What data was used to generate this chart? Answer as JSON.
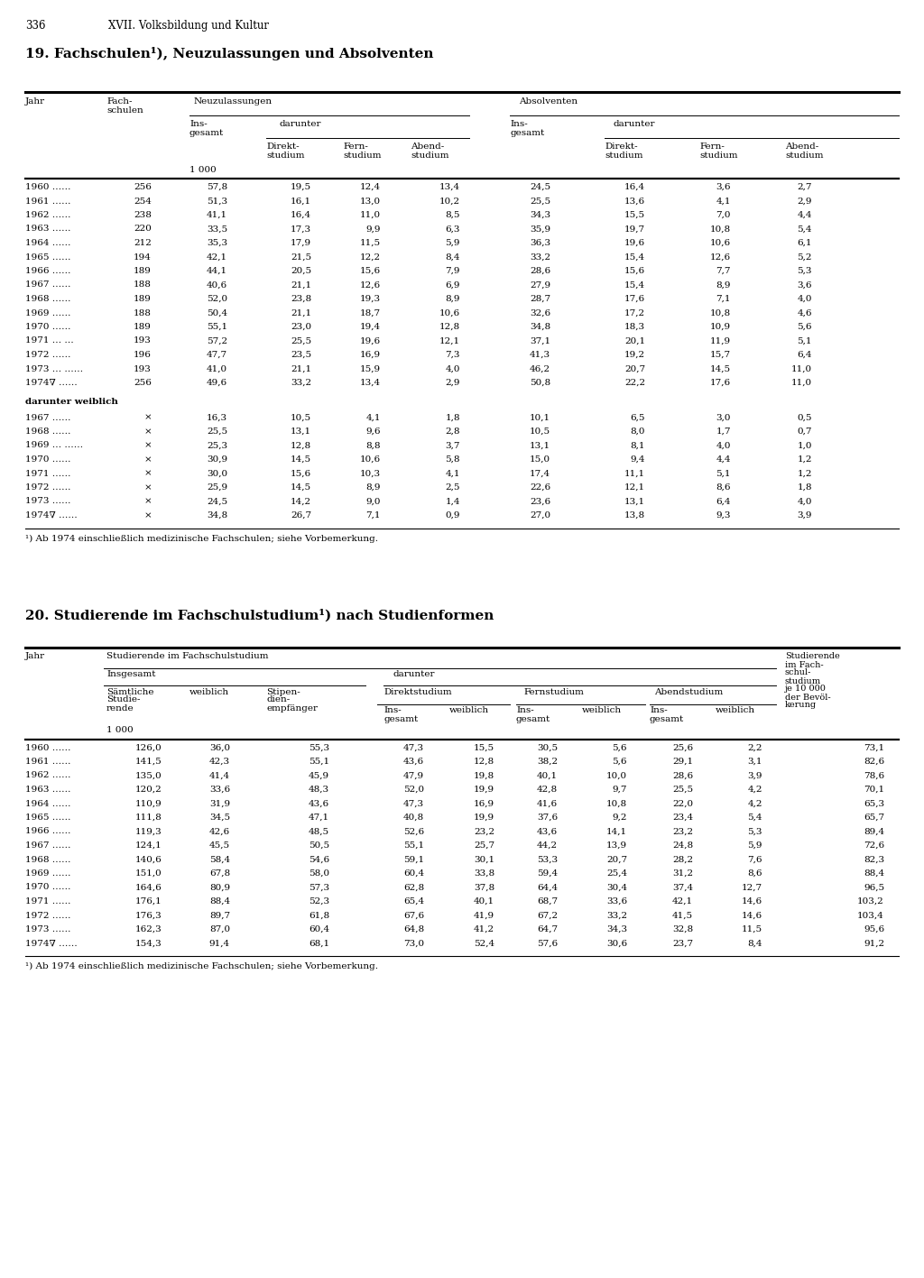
{
  "page_number": "336",
  "page_header": "XVII. Volksbildung und Kultur",
  "table1_title": "19. Fachschulen¹), Neuzulassungen und Absolventen",
  "table1_footnote": "¹) Ab 1974 einschließlich medizinische Fachschulen; siehe Vorbemerkung.",
  "table1_main_data": [
    [
      "1960 ……",
      "256",
      "57,8",
      "19,5",
      "12,4",
      "13,4",
      "24,5",
      "16,4",
      "3,6",
      "2,7"
    ],
    [
      "1961 ……",
      "254",
      "51,3",
      "16,1",
      "13,0",
      "10,2",
      "25,5",
      "13,6",
      "4,1",
      "2,9"
    ],
    [
      "1962 ……",
      "238",
      "41,1",
      "16,4",
      "11,0",
      "8,5",
      "34,3",
      "15,5",
      "7,0",
      "4,4"
    ],
    [
      "1963 ……",
      "220",
      "33,5",
      "17,3",
      "9,9",
      "6,3",
      "35,9",
      "19,7",
      "10,8",
      "5,4"
    ],
    [
      "1964 ……",
      "212",
      "35,3",
      "17,9",
      "11,5",
      "5,9",
      "36,3",
      "19,6",
      "10,6",
      "6,1"
    ],
    [
      "1965 ……",
      "194",
      "42,1",
      "21,5",
      "12,2",
      "8,4",
      "33,2",
      "15,4",
      "12,6",
      "5,2"
    ],
    [
      "1966 ……",
      "189",
      "44,1",
      "20,5",
      "15,6",
      "7,9",
      "28,6",
      "15,6",
      "7,7",
      "5,3"
    ],
    [
      "1967 ……",
      "188",
      "40,6",
      "21,1",
      "12,6",
      "6,9",
      "27,9",
      "15,4",
      "8,9",
      "3,6"
    ],
    [
      "1968 ……",
      "189",
      "52,0",
      "23,8",
      "19,3",
      "8,9",
      "28,7",
      "17,6",
      "7,1",
      "4,0"
    ],
    [
      "1969 ……",
      "188",
      "50,4",
      "21,1",
      "18,7",
      "10,6",
      "32,6",
      "17,2",
      "10,8",
      "4,6"
    ],
    [
      "1970 ……",
      "189",
      "55,1",
      "23,0",
      "19,4",
      "12,8",
      "34,8",
      "18,3",
      "10,9",
      "5,6"
    ],
    [
      "1971 … …",
      "193",
      "57,2",
      "25,5",
      "19,6",
      "12,1",
      "37,1",
      "20,1",
      "11,9",
      "5,1"
    ],
    [
      "1972 ……",
      "196",
      "47,7",
      "23,5",
      "16,9",
      "7,3",
      "41,3",
      "19,2",
      "15,7",
      "6,4"
    ],
    [
      "1973 … ……",
      "193",
      "41,0",
      "21,1",
      "15,9",
      "4,0",
      "46,2",
      "20,7",
      "14,5",
      "11,0"
    ],
    [
      "1974∇ ……",
      "256",
      "49,6",
      "33,2",
      "13,4",
      "2,9",
      "50,8",
      "22,2",
      "17,6",
      "11,0"
    ]
  ],
  "table1_sub_header": "darunter weiblich",
  "table1_sub_data": [
    [
      "1967 ……",
      "×",
      "16,3",
      "10,5",
      "4,1",
      "1,8",
      "10,1",
      "6,5",
      "3,0",
      "0,5"
    ],
    [
      "1968 ……",
      "×",
      "25,5",
      "13,1",
      "9,6",
      "2,8",
      "10,5",
      "8,0",
      "1,7",
      "0,7"
    ],
    [
      "1969 … ……",
      "×",
      "25,3",
      "12,8",
      "8,8",
      "3,7",
      "13,1",
      "8,1",
      "4,0",
      "1,0"
    ],
    [
      "1970 ……",
      "×",
      "30,9",
      "14,5",
      "10,6",
      "5,8",
      "15,0",
      "9,4",
      "4,4",
      "1,2"
    ],
    [
      "1971 ……",
      "×",
      "30,0",
      "15,6",
      "10,3",
      "4,1",
      "17,4",
      "11,1",
      "5,1",
      "1,2"
    ],
    [
      "1972 ……",
      "×",
      "25,9",
      "14,5",
      "8,9",
      "2,5",
      "22,6",
      "12,1",
      "8,6",
      "1,8"
    ],
    [
      "1973 ……",
      "×",
      "24,5",
      "14,2",
      "9,0",
      "1,4",
      "23,6",
      "13,1",
      "6,4",
      "4,0"
    ],
    [
      "1974∇ ……",
      "×",
      "34,8",
      "26,7",
      "7,1",
      "0,9",
      "27,0",
      "13,8",
      "9,3",
      "3,9"
    ]
  ],
  "table2_title": "20. Studierende im Fachschulstudium¹) nach Studienformen",
  "table2_footnote": "¹) Ab 1974 einschließlich medizinische Fachschulen; siehe Vorbemerkung.",
  "table2_main_data": [
    [
      "1960 ……",
      "126,0",
      "36,0",
      "55,3",
      "47,3",
      "15,5",
      "30,5",
      "5,6",
      "25,6",
      "2,2",
      "73,1"
    ],
    [
      "1961 ……",
      "141,5",
      "42,3",
      "55,1",
      "43,6",
      "12,8",
      "38,2",
      "5,6",
      "29,1",
      "3,1",
      "82,6"
    ],
    [
      "1962 ……",
      "135,0",
      "41,4",
      "45,9",
      "47,9",
      "19,8",
      "40,1",
      "10,0",
      "28,6",
      "3,9",
      "78,6"
    ],
    [
      "1963 ……",
      "120,2",
      "33,6",
      "48,3",
      "52,0",
      "19,9",
      "42,8",
      "9,7",
      "25,5",
      "4,2",
      "70,1"
    ],
    [
      "1964 ……",
      "110,9",
      "31,9",
      "43,6",
      "47,3",
      "16,9",
      "41,6",
      "10,8",
      "22,0",
      "4,2",
      "65,3"
    ],
    [
      "1965 ……",
      "111,8",
      "34,5",
      "47,1",
      "40,8",
      "19,9",
      "37,6",
      "9,2",
      "23,4",
      "5,4",
      "65,7"
    ],
    [
      "1966 ……",
      "119,3",
      "42,6",
      "48,5",
      "52,6",
      "23,2",
      "43,6",
      "14,1",
      "23,2",
      "5,3",
      "89,4"
    ],
    [
      "1967 ……",
      "124,1",
      "45,5",
      "50,5",
      "55,1",
      "25,7",
      "44,2",
      "13,9",
      "24,8",
      "5,9",
      "72,6"
    ],
    [
      "1968 ……",
      "140,6",
      "58,4",
      "54,6",
      "59,1",
      "30,1",
      "53,3",
      "20,7",
      "28,2",
      "7,6",
      "82,3"
    ],
    [
      "1969 ……",
      "151,0",
      "67,8",
      "58,0",
      "60,4",
      "33,8",
      "59,4",
      "25,4",
      "31,2",
      "8,6",
      "88,4"
    ],
    [
      "1970 ……",
      "164,6",
      "80,9",
      "57,3",
      "62,8",
      "37,8",
      "64,4",
      "30,4",
      "37,4",
      "12,7",
      "96,5"
    ],
    [
      "1971 ……",
      "176,1",
      "88,4",
      "52,3",
      "65,4",
      "40,1",
      "68,7",
      "33,6",
      "42,1",
      "14,6",
      "103,2"
    ],
    [
      "1972 ……",
      "176,3",
      "89,7",
      "61,8",
      "67,6",
      "41,9",
      "67,2",
      "33,2",
      "41,5",
      "14,6",
      "103,4"
    ],
    [
      "1973 ……",
      "162,3",
      "87,0",
      "60,4",
      "64,8",
      "41,2",
      "64,7",
      "34,3",
      "32,8",
      "11,5",
      "95,6"
    ],
    [
      "1974∇ ……",
      "154,3",
      "91,4",
      "68,1",
      "73,0",
      "52,4",
      "57,6",
      "30,6",
      "23,7",
      "8,4",
      "91,2"
    ]
  ],
  "background_color": "#ffffff"
}
